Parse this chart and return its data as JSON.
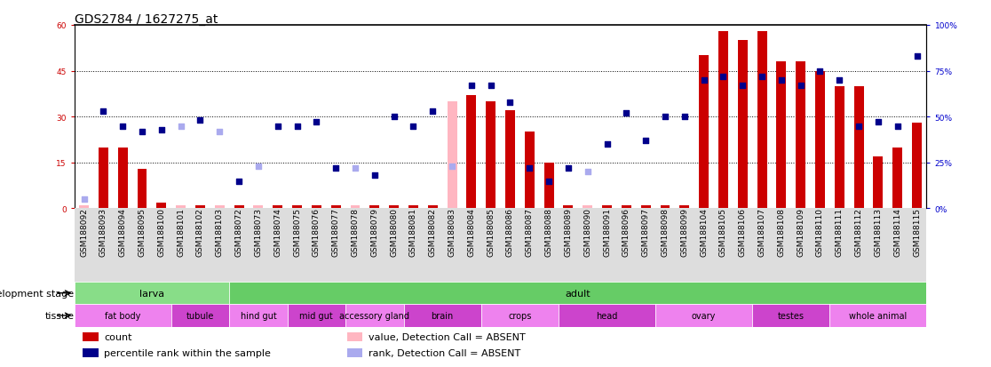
{
  "title": "GDS2784 / 1627275_at",
  "samples": [
    "GSM188092",
    "GSM188093",
    "GSM188094",
    "GSM188095",
    "GSM188100",
    "GSM188101",
    "GSM188102",
    "GSM188103",
    "GSM188072",
    "GSM188073",
    "GSM188074",
    "GSM188075",
    "GSM188076",
    "GSM188077",
    "GSM188078",
    "GSM188079",
    "GSM188080",
    "GSM188081",
    "GSM188082",
    "GSM188083",
    "GSM188084",
    "GSM188085",
    "GSM188086",
    "GSM188087",
    "GSM188088",
    "GSM188089",
    "GSM188090",
    "GSM188091",
    "GSM188096",
    "GSM188097",
    "GSM188098",
    "GSM188099",
    "GSM188104",
    "GSM188105",
    "GSM188106",
    "GSM188107",
    "GSM188108",
    "GSM188109",
    "GSM188110",
    "GSM188111",
    "GSM188112",
    "GSM188113",
    "GSM188114",
    "GSM188115"
  ],
  "count_values": [
    1,
    20,
    20,
    13,
    2,
    1,
    1,
    1,
    1,
    1,
    1,
    1,
    1,
    1,
    1,
    1,
    1,
    1,
    1,
    35,
    37,
    35,
    32,
    25,
    15,
    1,
    1,
    1,
    1,
    1,
    1,
    1,
    50,
    58,
    55,
    58,
    48,
    48,
    45,
    40,
    40,
    17,
    20,
    28
  ],
  "rank_values": [
    5,
    53,
    45,
    42,
    43,
    45,
    48,
    42,
    15,
    23,
    45,
    45,
    47,
    22,
    22,
    18,
    50,
    45,
    53,
    23,
    67,
    67,
    58,
    22,
    15,
    22,
    20,
    35,
    52,
    37,
    50,
    50,
    70,
    72,
    67,
    72,
    70,
    67,
    75,
    70,
    45,
    47,
    45,
    83
  ],
  "absent_flags": [
    true,
    false,
    false,
    false,
    false,
    true,
    false,
    true,
    false,
    true,
    false,
    false,
    false,
    false,
    true,
    false,
    false,
    false,
    false,
    true,
    false,
    false,
    false,
    false,
    false,
    false,
    true,
    false,
    false,
    false,
    false,
    false,
    false,
    false,
    false,
    false,
    false,
    false,
    false,
    false,
    false,
    false,
    false,
    false
  ],
  "ylim_left": [
    0,
    60
  ],
  "ylim_right": [
    0,
    100
  ],
  "yticks_left": [
    0,
    15,
    30,
    45,
    60
  ],
  "yticks_right": [
    0,
    25,
    50,
    75,
    100
  ],
  "ytick_labels_left": [
    "0",
    "15",
    "30",
    "45",
    "60"
  ],
  "ytick_labels_right": [
    "0%",
    "25%",
    "50%",
    "75%",
    "100%"
  ],
  "hlines": [
    15,
    30,
    45
  ],
  "development_stage_groups": [
    {
      "label": "larva",
      "start": 0,
      "end": 8,
      "color": "#88DD88"
    },
    {
      "label": "adult",
      "start": 8,
      "end": 44,
      "color": "#66CC66"
    }
  ],
  "tissue_groups": [
    {
      "label": "fat body",
      "start": 0,
      "end": 5,
      "color": "#EE82EE"
    },
    {
      "label": "tubule",
      "start": 5,
      "end": 8,
      "color": "#CC44CC"
    },
    {
      "label": "hind gut",
      "start": 8,
      "end": 11,
      "color": "#EE82EE"
    },
    {
      "label": "mid gut",
      "start": 11,
      "end": 14,
      "color": "#CC44CC"
    },
    {
      "label": "accessory gland",
      "start": 14,
      "end": 17,
      "color": "#EE82EE"
    },
    {
      "label": "brain",
      "start": 17,
      "end": 21,
      "color": "#CC44CC"
    },
    {
      "label": "crops",
      "start": 21,
      "end": 25,
      "color": "#EE82EE"
    },
    {
      "label": "head",
      "start": 25,
      "end": 30,
      "color": "#CC44CC"
    },
    {
      "label": "ovary",
      "start": 30,
      "end": 35,
      "color": "#EE82EE"
    },
    {
      "label": "testes",
      "start": 35,
      "end": 39,
      "color": "#CC44CC"
    },
    {
      "label": "whole animal",
      "start": 39,
      "end": 44,
      "color": "#EE82EE"
    }
  ],
  "bar_color_present": "#CC0000",
  "bar_color_absent": "#FFB6C1",
  "dot_color_present": "#00008B",
  "dot_color_absent": "#AAAAEE",
  "bar_width": 0.5,
  "dot_size": 18,
  "background_color": "#FFFFFF",
  "plot_bg": "#FFFFFF",
  "xtick_bg": "#DDDDDD",
  "title_color": "black",
  "title_fontsize": 10,
  "tick_fontsize": 6.5,
  "legend_fontsize": 8,
  "axis_left_color": "#CC0000",
  "axis_right_color": "#0000CC"
}
